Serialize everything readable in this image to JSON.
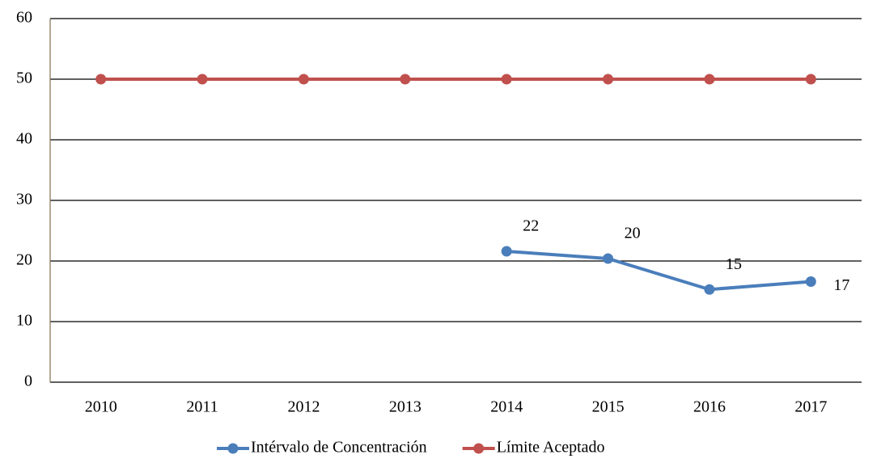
{
  "chart_data": {
    "type": "line",
    "categories": [
      "2010",
      "2011",
      "2012",
      "2013",
      "2014",
      "2015",
      "2016",
      "2017"
    ],
    "series": [
      {
        "name": "Intérvalo de Concentración",
        "color": "#4a7ebb",
        "values": [
          null,
          null,
          null,
          null,
          21.6,
          20.4,
          15.3,
          16.6
        ],
        "value_labels": [
          null,
          null,
          null,
          null,
          "22",
          "20",
          "15",
          "17"
        ]
      },
      {
        "name": "Límite Aceptado",
        "color": "#c0504d",
        "values": [
          50,
          50,
          50,
          50,
          50,
          50,
          50,
          50
        ]
      }
    ],
    "ylim": [
      0,
      60
    ],
    "yticks": [
      0,
      10,
      20,
      30,
      40,
      50,
      60
    ],
    "grid": true,
    "legend": "bottom"
  }
}
